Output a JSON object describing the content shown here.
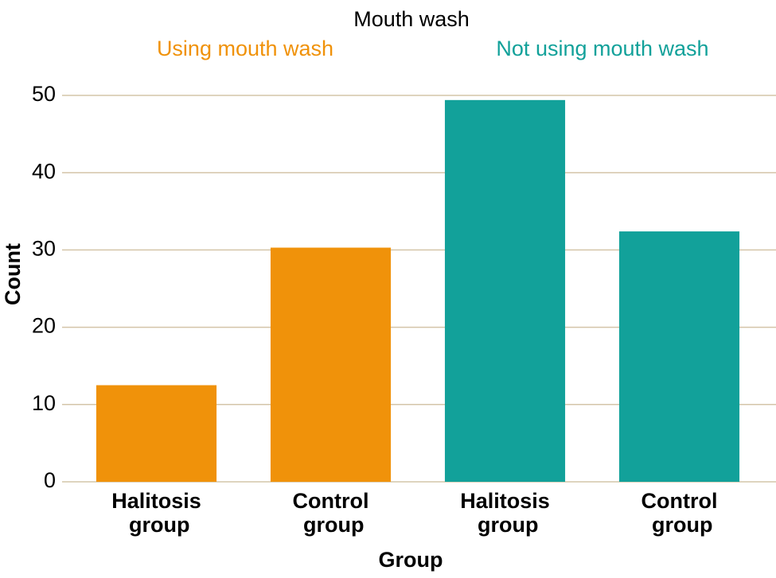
{
  "chart_data": {
    "type": "bar",
    "legend_title": "Mouth wash",
    "categories": [
      "Halitosis group",
      "Control group",
      "Halitosis group",
      "Control group"
    ],
    "series": [
      {
        "name": "Using mouth wash",
        "color": "#f0920a",
        "values": [
          12.5,
          30.3,
          null,
          null
        ]
      },
      {
        "name": "Not using mouth wash",
        "color": "#12a19a",
        "values": [
          null,
          null,
          49.4,
          32.4
        ]
      }
    ],
    "ylim": [
      0,
      50
    ],
    "yticks": [
      0,
      10,
      20,
      30,
      40,
      50
    ],
    "y_label": "Count",
    "x_label": "Group",
    "grid": true,
    "legend": "top"
  }
}
